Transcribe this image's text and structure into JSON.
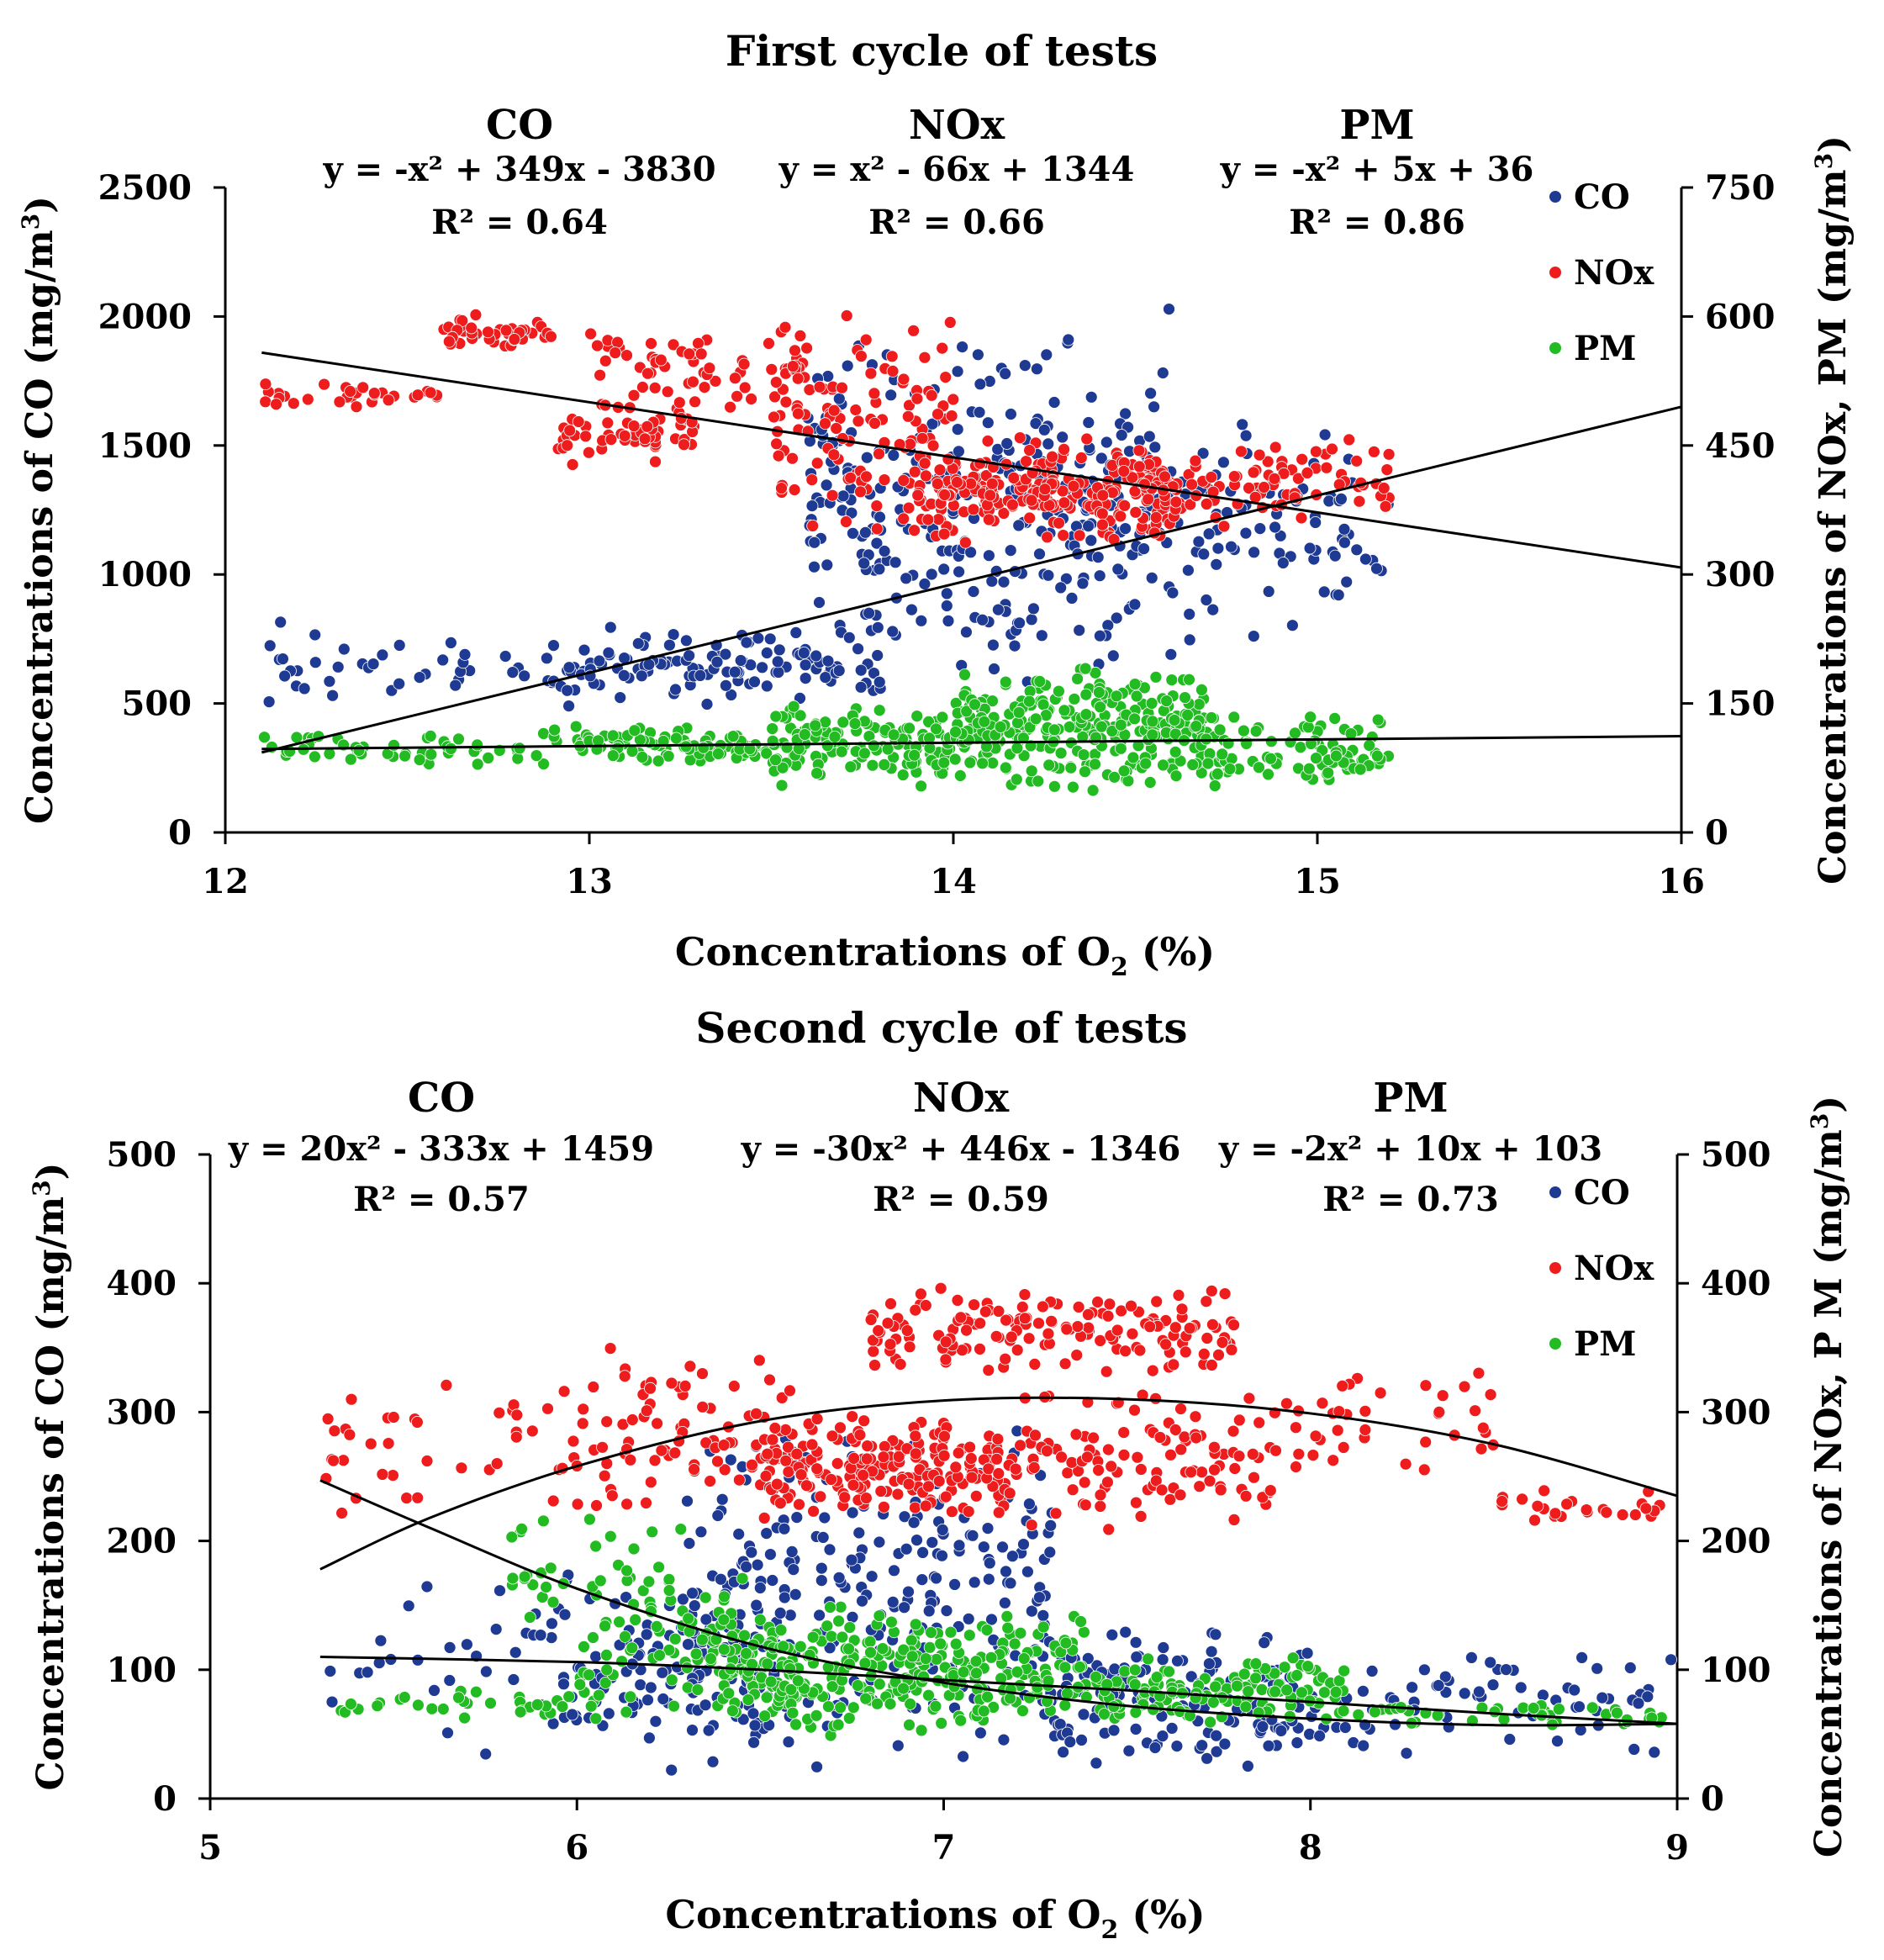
{
  "chart_data": [
    {
      "type": "scatter",
      "title": "First cycle of tests",
      "xlabel": "Concentrations of O",
      "xlabel_sub": "2",
      "xlabel_suffix": " (%)",
      "ylabel_left": "Concentrations of CO (mg/m",
      "ylabel_left_sup": "3",
      "ylabel_left_suffix": ")",
      "ylabel_right": "Concentrations of NOx, PM (mg/m",
      "ylabel_right_sup": "3",
      "ylabel_right_suffix": ")",
      "xlim": [
        12,
        16
      ],
      "xticks": [
        "12",
        "13",
        "14",
        "15",
        "16"
      ],
      "ylim_left": [
        0,
        2500
      ],
      "yticks_left": [
        "0",
        "500",
        "1000",
        "1500",
        "2000",
        "2500"
      ],
      "ylim_right": [
        0,
        750
      ],
      "yticks_right": [
        "0",
        "150",
        "300",
        "450",
        "600",
        "750"
      ],
      "legend": [
        "CO",
        "NOx",
        "PM"
      ],
      "colors": {
        "CO": "#1f3a93",
        "NOx": "#ee1c1c",
        "PM": "#22bb22"
      },
      "annotations": [
        {
          "name": "CO",
          "equation": "y = -x² + 349x - 3830",
          "r2": "R² = 0.64"
        },
        {
          "name": "NOx",
          "equation": "y = x² - 66x + 1344",
          "r2": "R² = 0.66"
        },
        {
          "name": "PM",
          "equation": "y = -x² + 5x + 36",
          "r2": "R² = 0.86"
        }
      ],
      "series": [
        {
          "name": "CO",
          "axis": "left",
          "x_range": [
            12.1,
            15.2
          ],
          "clusters": [
            {
              "x": [
                12.1,
                12.9
              ],
              "y": [
                450,
                820
              ],
              "n": 40
            },
            {
              "x": [
                12.9,
                13.3
              ],
              "y": [
                480,
                800
              ],
              "n": 60
            },
            {
              "x": [
                13.3,
                13.8
              ],
              "y": [
                480,
                820
              ],
              "n": 70
            },
            {
              "x": [
                13.6,
                14.0
              ],
              "y": [
                600,
                1950
              ],
              "n": 120
            },
            {
              "x": [
                14.0,
                14.6
              ],
              "y": [
                550,
                2050
              ],
              "n": 200
            },
            {
              "x": [
                14.6,
                15.2
              ],
              "y": [
                700,
                1650
              ],
              "n": 80
            }
          ]
        },
        {
          "name": "NOx",
          "axis": "right",
          "x_range": [
            12.1,
            15.2
          ],
          "clusters": [
            {
              "x": [
                12.1,
                12.6
              ],
              "y": [
                490,
                525
              ],
              "n": 30
            },
            {
              "x": [
                12.6,
                12.9
              ],
              "y": [
                560,
                605
              ],
              "n": 40
            },
            {
              "x": [
                12.9,
                13.3
              ],
              "y": [
                425,
                500
              ],
              "n": 60
            },
            {
              "x": [
                13.0,
                13.6
              ],
              "y": [
                490,
                590
              ],
              "n": 60
            },
            {
              "x": [
                13.5,
                14.0
              ],
              "y": [
                340,
                615
              ],
              "n": 120
            },
            {
              "x": [
                13.9,
                14.6
              ],
              "y": [
                330,
                460
              ],
              "n": 250
            },
            {
              "x": [
                14.5,
                15.2
              ],
              "y": [
                350,
                460
              ],
              "n": 90
            }
          ]
        },
        {
          "name": "PM",
          "axis": "right",
          "x_range": [
            12.1,
            15.2
          ],
          "clusters": [
            {
              "x": [
                12.1,
                12.9
              ],
              "y": [
                75,
                120
              ],
              "n": 50
            },
            {
              "x": [
                12.9,
                13.5
              ],
              "y": [
                80,
                125
              ],
              "n": 90
            },
            {
              "x": [
                13.5,
                14.0
              ],
              "y": [
                50,
                150
              ],
              "n": 140
            },
            {
              "x": [
                14.0,
                14.7
              ],
              "y": [
                45,
                195
              ],
              "n": 280
            },
            {
              "x": [
                14.6,
                15.2
              ],
              "y": [
                40,
                140
              ],
              "n": 100
            }
          ]
        }
      ],
      "trendlines": [
        {
          "name": "CO",
          "axis": "left",
          "x": [
            12.1,
            16
          ],
          "y": [
            310,
            1650
          ]
        },
        {
          "name": "NOx",
          "axis": "right",
          "x": [
            12.1,
            16
          ],
          "y": [
            558,
            308
          ]
        },
        {
          "name": "PM",
          "axis": "right",
          "x": [
            12.1,
            16
          ],
          "y": [
            97,
            112
          ]
        }
      ]
    },
    {
      "type": "scatter",
      "title": "Second cycle of tests",
      "xlabel": "Concentrations of O",
      "xlabel_sub": "2",
      "xlabel_suffix": " (%)",
      "ylabel_left": "Concentrations of CO (mg/m",
      "ylabel_left_sup": "3",
      "ylabel_left_suffix": ")",
      "ylabel_right": "Concentrations of NOx, P M (mg/m",
      "ylabel_right_sup": "3",
      "ylabel_right_suffix": ")",
      "xlim": [
        5,
        9
      ],
      "xticks": [
        "5",
        "6",
        "7",
        "8",
        "9"
      ],
      "ylim_left": [
        0,
        500
      ],
      "yticks_left": [
        "0",
        "100",
        "200",
        "300",
        "400",
        "500"
      ],
      "ylim_right": [
        0,
        500
      ],
      "yticks_right": [
        "0",
        "100",
        "200",
        "300",
        "400",
        "500"
      ],
      "legend": [
        "CO",
        "NOx",
        "PM"
      ],
      "colors": {
        "CO": "#1f3a93",
        "NOx": "#ee1c1c",
        "PM": "#22bb22"
      },
      "annotations": [
        {
          "name": "CO",
          "equation": "y = 20x² - 333x + 1459",
          "r2": "R² = 0.57"
        },
        {
          "name": "NOx",
          "equation": "y = -30x² + 446x - 1346",
          "r2": "R² = 0.59"
        },
        {
          "name": "PM",
          "equation": "y = -2x² + 10x + 103",
          "r2": "R² = 0.73"
        }
      ],
      "series": [
        {
          "name": "CO",
          "axis": "left",
          "x_range": [
            5.3,
            9.0
          ],
          "clusters": [
            {
              "x": [
                5.3,
                5.9
              ],
              "y": [
                20,
                190
              ],
              "n": 25
            },
            {
              "x": [
                5.9,
                6.5
              ],
              "y": [
                15,
                180
              ],
              "n": 110
            },
            {
              "x": [
                6.3,
                7.3
              ],
              "y": [
                12,
                290
              ],
              "n": 280
            },
            {
              "x": [
                7.3,
                8.0
              ],
              "y": [
                15,
                140
              ],
              "n": 150
            },
            {
              "x": [
                8.0,
                9.0
              ],
              "y": [
                25,
                120
              ],
              "n": 70
            }
          ]
        },
        {
          "name": "NOx",
          "axis": "right",
          "x_range": [
            5.3,
            9.0
          ],
          "clusters": [
            {
              "x": [
                5.3,
                6.0
              ],
              "y": [
                215,
                330
              ],
              "n": 40
            },
            {
              "x": [
                6.0,
                6.6
              ],
              "y": [
                220,
                350
              ],
              "n": 90
            },
            {
              "x": [
                6.5,
                7.2
              ],
              "y": [
                215,
                300
              ],
              "n": 200
            },
            {
              "x": [
                6.8,
                7.8
              ],
              "y": [
                330,
                398
              ],
              "n": 160
            },
            {
              "x": [
                7.2,
                7.9
              ],
              "y": [
                205,
                320
              ],
              "n": 110
            },
            {
              "x": [
                7.9,
                8.5
              ],
              "y": [
                240,
                355
              ],
              "n": 40
            },
            {
              "x": [
                8.5,
                9.0
              ],
              "y": [
                215,
                240
              ],
              "n": 25
            }
          ]
        },
        {
          "name": "PM",
          "axis": "right",
          "x_range": [
            5.3,
            9.0
          ],
          "clusters": [
            {
              "x": [
                5.3,
                6.0
              ],
              "y": [
                60,
                90
              ],
              "n": 30
            },
            {
              "x": [
                5.8,
                6.3
              ],
              "y": [
                130,
                225
              ],
              "n": 40
            },
            {
              "x": [
                6.0,
                6.6
              ],
              "y": [
                60,
                175
              ],
              "n": 90
            },
            {
              "x": [
                6.4,
                7.4
              ],
              "y": [
                45,
                150
              ],
              "n": 300
            },
            {
              "x": [
                7.4,
                8.1
              ],
              "y": [
                55,
                110
              ],
              "n": 130
            },
            {
              "x": [
                8.1,
                9.0
              ],
              "y": [
                55,
                75
              ],
              "n": 40
            }
          ]
        }
      ],
      "trendlines": [
        {
          "name": "CO",
          "axis": "left",
          "curve": true,
          "x": [
            5.3,
            5.6,
            6.0,
            6.5,
            7.0,
            7.5,
            8.0,
            8.5,
            9.0
          ],
          "y": [
            247,
            210,
            163,
            118,
            90,
            72,
            62,
            57,
            58
          ]
        },
        {
          "name": "NOx",
          "axis": "right",
          "curve": true,
          "x": [
            5.3,
            5.6,
            6.0,
            6.5,
            7.0,
            7.5,
            8.0,
            8.5,
            9.0
          ],
          "y": [
            178,
            218,
            258,
            293,
            309,
            310,
            299,
            275,
            235
          ]
        },
        {
          "name": "PM",
          "axis": "right",
          "curve": true,
          "x": [
            5.3,
            6.0,
            6.5,
            7.0,
            7.5,
            8.0,
            8.5,
            9.0
          ],
          "y": [
            110,
            106,
            100,
            92,
            84,
            75,
            66,
            58
          ]
        }
      ]
    }
  ]
}
